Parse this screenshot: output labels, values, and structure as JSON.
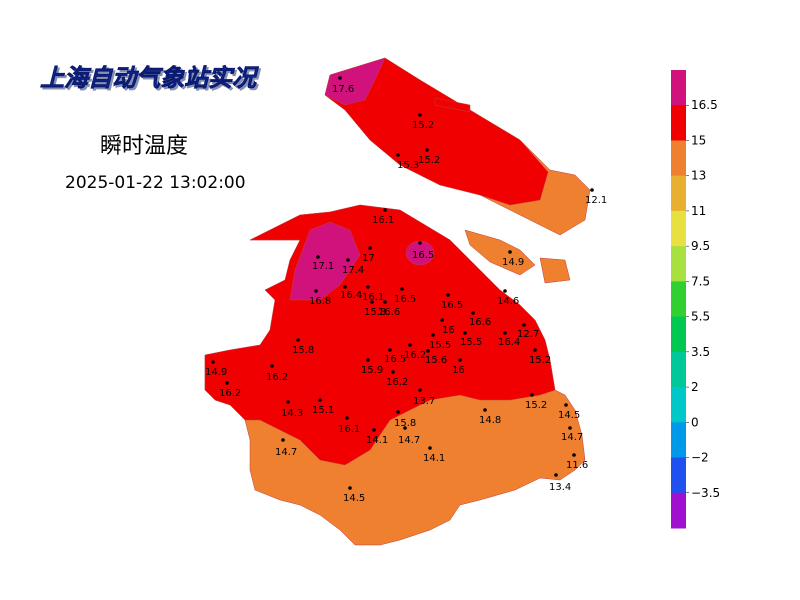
{
  "header": {
    "title": "上海自动气象站实况",
    "subtitle": "瞬时温度",
    "timestamp": "2025-01-22 13:02:00"
  },
  "stations": [
    17.6,
    15.2,
    15.3,
    15.2,
    12.1,
    16.1,
    17.1,
    17.4,
    17,
    16.5,
    14.9,
    16.4,
    16.8,
    16.1,
    16.5,
    16.5,
    14.6,
    15.8,
    16.6,
    16.6,
    16,
    12.7,
    15.5,
    15.5,
    16.4,
    15.8,
    16.2,
    16.5,
    15.6,
    15.2,
    15.9,
    16,
    14.9,
    16.2,
    16.2,
    16.2,
    13.7,
    15.2,
    14.3,
    15.1,
    14.8,
    14.5,
    16.1,
    15.8,
    14.1,
    14.7,
    14.7,
    14.7,
    14.1,
    11.6,
    13.4,
    14.5
  ],
  "legend": {
    "colors": [
      "#d2127c",
      "#f00000",
      "#ee8030",
      "#e8b030",
      "#e8e040",
      "#a8e040",
      "#30d030",
      "#00c850",
      "#00c898",
      "#00c8c8",
      "#0098e8",
      "#2050f0",
      "#a010d0"
    ],
    "labels": [
      16.5,
      15,
      13,
      11,
      9.5,
      7.5,
      5.5,
      3.5,
      2,
      0,
      {
        "value": -2,
        "label": "−2"
      },
      {
        "value": -3.5,
        "label": "−3.5"
      }
    ]
  }
}
